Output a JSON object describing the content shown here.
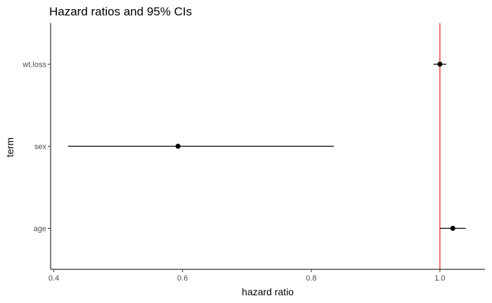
{
  "chart_data": {
    "type": "forest",
    "title": "Hazard ratios and 95% CIs",
    "xlabel": "hazard ratio",
    "ylabel": "term",
    "xlim": [
      0.395,
      1.07
    ],
    "xticks": [
      0.4,
      0.6,
      0.8,
      1.0
    ],
    "xtick_labels": [
      "0.4",
      "0.6",
      "0.8",
      "1.0"
    ],
    "reference_line": {
      "x": 1.0,
      "color": "#e41a1c"
    },
    "grid": false,
    "points": [
      {
        "term": "wt.loss",
        "estimate": 1.0,
        "lower": 0.99,
        "upper": 1.01
      },
      {
        "term": "sex",
        "estimate": 0.593,
        "lower": 0.422,
        "upper": 0.835
      },
      {
        "term": "age",
        "estimate": 1.02,
        "lower": 1.0,
        "upper": 1.04
      }
    ]
  }
}
